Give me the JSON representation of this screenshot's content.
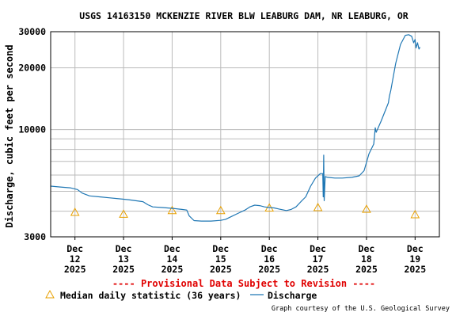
{
  "chart_data": {
    "type": "line",
    "title": "USGS 14163150 MCKENZIE RIVER BLW LEABURG DAM, NR LEABURG, OR",
    "ylabel": "Discharge, cubic feet per second",
    "xlabel": "",
    "yscale": "log",
    "ylim": [
      3000,
      30000
    ],
    "xlim": [
      11.5,
      19.5
    ],
    "yticks": [
      3000,
      10000,
      20000,
      30000
    ],
    "ytick_labels": [
      "3000",
      "10000",
      "20000",
      "30000"
    ],
    "ygrid_minor": [
      4000,
      5000,
      6000,
      7000,
      8000,
      9000
    ],
    "grid": true,
    "xticks": [
      {
        "x": 12,
        "day": "Dec",
        "num": "12",
        "year": "2025"
      },
      {
        "x": 13,
        "day": "Dec",
        "num": "13",
        "year": "2025"
      },
      {
        "x": 14,
        "day": "Dec",
        "num": "14",
        "year": "2025"
      },
      {
        "x": 15,
        "day": "Dec",
        "num": "15",
        "year": "2025"
      },
      {
        "x": 16,
        "day": "Dec",
        "num": "16",
        "year": "2025"
      },
      {
        "x": 17,
        "day": "Dec",
        "num": "17",
        "year": "2025"
      },
      {
        "x": 18,
        "day": "Dec",
        "num": "18",
        "year": "2025"
      },
      {
        "x": 19,
        "day": "Dec",
        "num": "19",
        "year": "2025"
      }
    ],
    "series": [
      {
        "name": "Discharge",
        "color": "#1f77b4",
        "points": [
          [
            11.5,
            5300
          ],
          [
            11.7,
            5250
          ],
          [
            11.9,
            5200
          ],
          [
            12.05,
            5100
          ],
          [
            12.15,
            4900
          ],
          [
            12.3,
            4750
          ],
          [
            12.5,
            4700
          ],
          [
            12.7,
            4650
          ],
          [
            12.9,
            4600
          ],
          [
            13.1,
            4550
          ],
          [
            13.25,
            4500
          ],
          [
            13.4,
            4450
          ],
          [
            13.5,
            4300
          ],
          [
            13.6,
            4200
          ],
          [
            13.8,
            4170
          ],
          [
            14.0,
            4130
          ],
          [
            14.2,
            4080
          ],
          [
            14.3,
            4050
          ],
          [
            14.35,
            3800
          ],
          [
            14.45,
            3600
          ],
          [
            14.6,
            3580
          ],
          [
            14.8,
            3580
          ],
          [
            15.0,
            3610
          ],
          [
            15.1,
            3650
          ],
          [
            15.2,
            3750
          ],
          [
            15.35,
            3900
          ],
          [
            15.5,
            4050
          ],
          [
            15.6,
            4200
          ],
          [
            15.7,
            4280
          ],
          [
            15.8,
            4260
          ],
          [
            15.9,
            4200
          ],
          [
            16.0,
            4170
          ],
          [
            16.1,
            4150
          ],
          [
            16.2,
            4100
          ],
          [
            16.3,
            4050
          ],
          [
            16.35,
            4030
          ],
          [
            16.45,
            4080
          ],
          [
            16.55,
            4200
          ],
          [
            16.65,
            4450
          ],
          [
            16.75,
            4700
          ],
          [
            16.85,
            5300
          ],
          [
            16.95,
            5800
          ],
          [
            17.05,
            6100
          ],
          [
            17.1,
            6100
          ],
          [
            17.11,
            4700
          ],
          [
            17.12,
            7500
          ],
          [
            17.13,
            4500
          ],
          [
            17.15,
            5900
          ],
          [
            17.2,
            5850
          ],
          [
            17.35,
            5800
          ],
          [
            17.5,
            5800
          ],
          [
            17.7,
            5850
          ],
          [
            17.85,
            5950
          ],
          [
            17.95,
            6300
          ],
          [
            18.05,
            7600
          ],
          [
            18.15,
            8500
          ],
          [
            18.18,
            10200
          ],
          [
            18.2,
            9700
          ],
          [
            18.3,
            11000
          ],
          [
            18.4,
            12600
          ],
          [
            18.45,
            13500
          ],
          [
            18.47,
            14500
          ],
          [
            18.5,
            15500
          ],
          [
            18.6,
            21000
          ],
          [
            18.7,
            26000
          ],
          [
            18.8,
            28800
          ],
          [
            18.87,
            29000
          ],
          [
            18.93,
            28500
          ],
          [
            18.97,
            26500
          ],
          [
            19.0,
            27500
          ],
          [
            19.02,
            25000
          ],
          [
            19.05,
            26500
          ],
          [
            19.08,
            24700
          ],
          [
            19.1,
            25200
          ]
        ]
      }
    ],
    "median_points": {
      "name": "Median daily statistic (36 years)",
      "color": "#e8a000",
      "values": [
        [
          12,
          3950
        ],
        [
          13,
          3870
        ],
        [
          14,
          4030
        ],
        [
          15,
          4030
        ],
        [
          16,
          4150
        ],
        [
          17,
          4170
        ],
        [
          18,
          4090
        ],
        [
          19,
          3850
        ]
      ]
    },
    "legend_placement": "bottom",
    "annotations": {
      "provisional": "---- Provisional Data Subject to Revision ----",
      "credit": "Graph courtesy of the U.S. Geological Survey"
    },
    "colors": {
      "plot_border": "#000000",
      "grid": "#bbbbbb",
      "discharge": "#1f77b4",
      "median": "#e8a000",
      "provisional": "#e00000"
    }
  }
}
